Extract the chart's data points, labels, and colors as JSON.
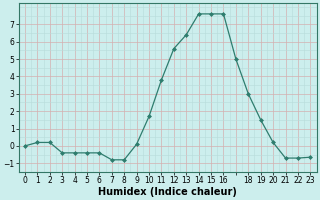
{
  "x": [
    0,
    1,
    2,
    3,
    4,
    5,
    6,
    7,
    8,
    9,
    10,
    11,
    12,
    13,
    14,
    15,
    16,
    17,
    18,
    19,
    20,
    21,
    22,
    23
  ],
  "y": [
    0,
    0.2,
    0.2,
    -0.4,
    -0.4,
    -0.4,
    -0.4,
    -0.8,
    -0.8,
    0.1,
    1.7,
    3.8,
    5.6,
    6.4,
    7.6,
    7.6,
    7.6,
    5.0,
    3.0,
    1.5,
    0.2,
    -0.7,
    -0.7,
    -0.65
  ],
  "line_color": "#2e7d6e",
  "marker": "D",
  "markersize": 2.0,
  "linewidth": 0.9,
  "xlabel": "Humidex (Indice chaleur)",
  "xlim": [
    -0.5,
    23.5
  ],
  "ylim": [
    -1.5,
    8.2
  ],
  "yticks": [
    -1,
    0,
    1,
    2,
    3,
    4,
    5,
    6,
    7
  ],
  "xtick_labels": [
    "0",
    "1",
    "2",
    "3",
    "4",
    "5",
    "6",
    "7",
    "8",
    "9",
    "10",
    "11",
    "12",
    "13",
    "14",
    "15",
    "16",
    "",
    "18",
    "19",
    "20",
    "21",
    "22",
    "23"
  ],
  "bg_color": "#cceeed",
  "grid_minor_color": "#b8dcda",
  "grid_major_color": "#d4b0b0",
  "tick_fontsize": 5.5,
  "xlabel_fontsize": 7.0
}
